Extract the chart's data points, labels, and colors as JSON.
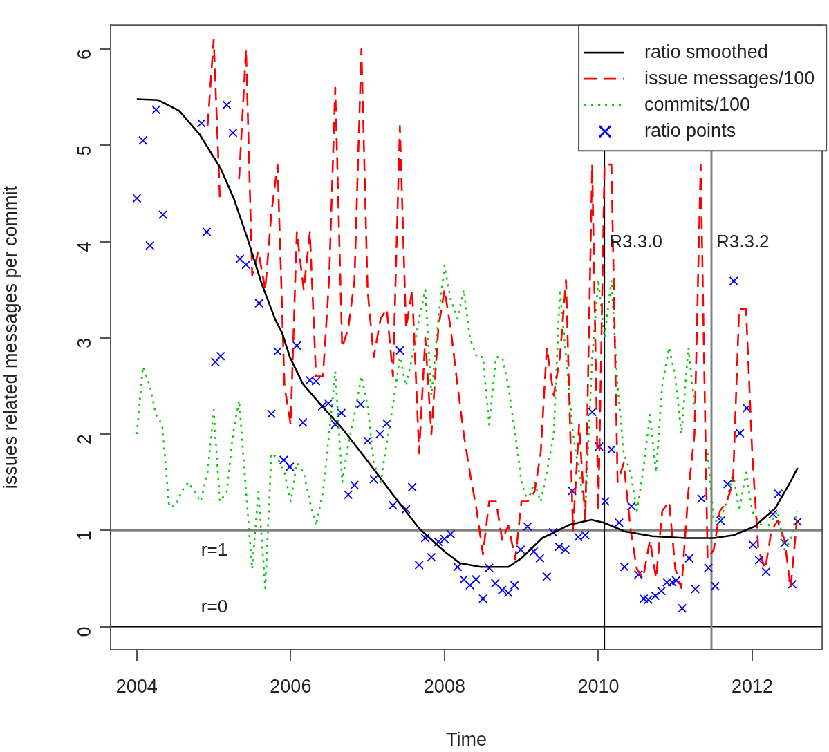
{
  "chart_data": {
    "type": "line",
    "xlabel": "Time",
    "ylabel": "issues related messages per commit",
    "xlim": [
      2003.66,
      2012.91
    ],
    "ylim": [
      -0.24,
      6.25
    ],
    "xticks": [
      2004,
      2006,
      2008,
      2010,
      2012
    ],
    "yticks": [
      0,
      1,
      2,
      3,
      4,
      5,
      6
    ],
    "grid": false,
    "legend": "top right",
    "ref_lines": [
      {
        "axis": "y",
        "value": 1,
        "label": "r=1",
        "color": "#808080"
      },
      {
        "axis": "y",
        "value": 0,
        "label": "r=0",
        "color": "#000000"
      },
      {
        "axis": "x",
        "value": 2010.08,
        "label": "R3.3.0",
        "color": "#000000"
      },
      {
        "axis": "x",
        "value": 2011.47,
        "label": "R3.3.2",
        "color": "#808080"
      }
    ],
    "series": [
      {
        "name": "ratio smoothed",
        "color": "#000000",
        "line_style": "solid",
        "marker": "none",
        "x": [
          2004.0,
          2004.28,
          2004.55,
          2004.82,
          2005.09,
          2005.26,
          2005.44,
          2005.62,
          2005.8,
          2005.89,
          2005.99,
          2006.16,
          2006.42,
          2006.67,
          2007.0,
          2007.33,
          2007.67,
          2008.0,
          2008.2,
          2008.47,
          2008.83,
          2009.0,
          2009.27,
          2009.63,
          2009.91,
          2010.07,
          2010.34,
          2010.7,
          2011.14,
          2011.5,
          2011.76,
          2012.03,
          2012.3,
          2012.48,
          2012.59
        ],
        "values": [
          5.48,
          5.47,
          5.36,
          5.11,
          4.76,
          4.45,
          4.03,
          3.57,
          3.19,
          3.05,
          2.8,
          2.52,
          2.28,
          2.06,
          1.72,
          1.37,
          1.02,
          0.78,
          0.66,
          0.62,
          0.62,
          0.71,
          0.92,
          1.06,
          1.11,
          1.08,
          0.99,
          0.94,
          0.92,
          0.92,
          0.95,
          1.04,
          1.23,
          1.48,
          1.65
        ]
      },
      {
        "name": "issue messages/100",
        "color": "#ff0000",
        "line_style": "dashed",
        "marker": "none",
        "x": [
          2004.92,
          2005.0,
          2005.08,
          2005.17,
          2005.25,
          2005.33,
          2005.42,
          2005.5,
          2005.58,
          2005.67,
          2005.75,
          2005.83,
          2005.92,
          2006.0,
          2006.08,
          2006.17,
          2006.25,
          2006.33,
          2006.42,
          2006.5,
          2006.58,
          2006.67,
          2006.75,
          2006.83,
          2006.92,
          2007.0,
          2007.08,
          2007.17,
          2007.25,
          2007.33,
          2007.42,
          2007.5,
          2007.58,
          2007.67,
          2007.75,
          2007.83,
          2007.92,
          2008.0,
          2008.08,
          2008.17,
          2008.25,
          2008.33,
          2008.42,
          2008.5,
          2008.58,
          2008.67,
          2008.75,
          2008.83,
          2008.92,
          2009.0,
          2009.08,
          2009.17,
          2009.25,
          2009.33,
          2009.42,
          2009.5,
          2009.58,
          2009.67,
          2009.75,
          2009.83,
          2009.92,
          2010.0,
          2010.08,
          2010.17,
          2010.25,
          2010.33,
          2010.42,
          2010.5,
          2010.58,
          2010.67,
          2010.75,
          2010.83,
          2010.92,
          2011.0,
          2011.08,
          2011.17,
          2011.25,
          2011.33,
          2011.42,
          2011.5,
          2011.58,
          2011.67,
          2011.75,
          2011.83,
          2011.92,
          2012.0,
          2012.08,
          2012.17,
          2012.25,
          2012.33,
          2012.42,
          2012.5,
          2012.58
        ],
        "values": [
          5.2,
          6.1,
          4.45,
          null,
          null,
          4.65,
          6.0,
          3.65,
          3.9,
          3.5,
          4.3,
          4.8,
          2.5,
          2.1,
          4.1,
          3.5,
          4.1,
          2.6,
          2.6,
          3.6,
          5.6,
          2.9,
          3.1,
          3.6,
          6.0,
          3.5,
          2.8,
          3.2,
          3.3,
          2.6,
          5.2,
          3.1,
          3.5,
          1.8,
          3.0,
          2.0,
          3.1,
          3.5,
          3.1,
          2.5,
          2.0,
          1.6,
          1.2,
          0.75,
          1.3,
          1.3,
          0.9,
          1.05,
          0.7,
          1.3,
          1.3,
          1.4,
          1.8,
          2.9,
          2.4,
          2.8,
          3.6,
          1.0,
          2.1,
          1.1,
          4.8,
          1.2,
          4.8,
          4.8,
          1.5,
          1.7,
          1.0,
          0.6,
          0.5,
          0.9,
          0.5,
          1.2,
          1.3,
          0.6,
          0.4,
          1.4,
          2.0,
          4.8,
          0.7,
          0.8,
          1.2,
          1.3,
          1.5,
          3.3,
          3.3,
          1.8,
          0.8,
          0.6,
          1.0,
          1.1,
          0.9,
          0.4,
          1.1
        ]
      },
      {
        "name": "commits/100",
        "color": "#00cd00",
        "line_style": "dotted",
        "marker": "none",
        "x": [
          2004.0,
          2004.08,
          2004.17,
          2004.25,
          2004.33,
          2004.42,
          2004.5,
          2004.58,
          2004.67,
          2004.75,
          2004.83,
          2004.92,
          2005.0,
          2005.08,
          2005.17,
          2005.25,
          2005.33,
          2005.42,
          2005.5,
          2005.58,
          2005.67,
          2005.75,
          2005.83,
          2005.92,
          2006.0,
          2006.08,
          2006.17,
          2006.25,
          2006.33,
          2006.42,
          2006.5,
          2006.58,
          2006.67,
          2006.75,
          2006.83,
          2006.92,
          2007.0,
          2007.08,
          2007.17,
          2007.25,
          2007.33,
          2007.42,
          2007.5,
          2007.58,
          2007.67,
          2007.75,
          2007.83,
          2007.92,
          2008.0,
          2008.08,
          2008.17,
          2008.25,
          2008.33,
          2008.42,
          2008.5,
          2008.58,
          2008.67,
          2008.75,
          2008.83,
          2008.92,
          2009.0,
          2009.08,
          2009.17,
          2009.25,
          2009.33,
          2009.42,
          2009.5,
          2009.58,
          2009.67,
          2009.75,
          2009.83,
          2009.92,
          2010.0,
          2010.08,
          2010.17,
          2010.25,
          2010.33,
          2010.42,
          2010.5,
          2010.58,
          2010.67,
          2010.75,
          2010.83,
          2010.92,
          2011.0,
          2011.08,
          2011.17,
          2011.25,
          2011.33,
          2011.42,
          2011.5,
          2011.58,
          2011.67,
          2011.75,
          2011.83,
          2011.92,
          2012.0,
          2012.08,
          2012.17,
          2012.25,
          2012.33,
          2012.42,
          2012.5,
          2012.58
        ],
        "values": [
          2.0,
          2.7,
          2.5,
          2.2,
          2.1,
          1.25,
          1.25,
          1.4,
          1.5,
          1.4,
          1.3,
          1.6,
          2.25,
          1.3,
          1.4,
          2.0,
          2.35,
          1.4,
          0.6,
          1.4,
          0.4,
          1.8,
          1.75,
          1.6,
          1.3,
          1.7,
          1.6,
          1.3,
          1.05,
          1.4,
          2.0,
          2.65,
          1.5,
          1.9,
          2.2,
          2.6,
          2.3,
          1.7,
          1.5,
          1.9,
          2.3,
          2.8,
          2.5,
          2.8,
          3.2,
          3.5,
          2.4,
          3.2,
          3.75,
          3.4,
          3.2,
          3.5,
          3.0,
          2.8,
          2.8,
          2.1,
          2.8,
          2.8,
          2.5,
          2.0,
          1.5,
          1.3,
          1.5,
          1.3,
          1.6,
          2.0,
          3.5,
          2.8,
          2.0,
          1.6,
          1.2,
          2.8,
          3.6,
          3.0,
          3.6,
          2.5,
          1.8,
          1.6,
          1.2,
          1.6,
          2.2,
          1.6,
          2.5,
          2.9,
          2.6,
          2.0,
          2.9,
          2.3,
          null,
          1.8,
          1.1,
          1.1,
          1.3,
          1.6,
          1.2,
          1.6,
          1.2,
          1.1,
          1.0,
          1.1,
          1.2,
          0.8,
          0.9,
          1.2
        ]
      },
      {
        "name": "ratio points",
        "type": "scatter",
        "color": "#0000ff",
        "marker": "cross",
        "x": [
          2004.0,
          2004.08,
          2004.17,
          2004.25,
          2004.34,
          2004.84,
          2004.91,
          2005.02,
          2005.09,
          2005.17,
          2005.25,
          2005.34,
          2005.42,
          2005.59,
          2005.75,
          2005.83,
          2005.91,
          2005.99,
          2006.08,
          2006.16,
          2006.25,
          2006.33,
          2006.41,
          2006.49,
          2006.58,
          2006.66,
          2006.75,
          2006.83,
          2006.91,
          2007.0,
          2007.08,
          2007.16,
          2007.25,
          2007.33,
          2007.42,
          2007.5,
          2007.58,
          2007.67,
          2007.75,
          2007.83,
          2007.92,
          2008.0,
          2008.08,
          2008.17,
          2008.25,
          2008.33,
          2008.41,
          2008.5,
          2008.58,
          2008.66,
          2008.75,
          2008.83,
          2008.91,
          2008.99,
          2009.08,
          2009.16,
          2009.24,
          2009.33,
          2009.41,
          2009.49,
          2009.57,
          2009.66,
          2009.74,
          2009.83,
          2009.92,
          2010.01,
          2010.09,
          2010.17,
          2010.27,
          2010.34,
          2010.43,
          2010.52,
          2010.59,
          2010.65,
          2010.74,
          2010.82,
          2010.89,
          2010.96,
          2011.01,
          2011.09,
          2011.18,
          2011.26,
          2011.34,
          2011.43,
          2011.52,
          2011.59,
          2011.68,
          2011.76,
          2011.84,
          2011.93,
          2012.01,
          2012.09,
          2012.18,
          2012.27,
          2012.34,
          2012.42,
          2012.52,
          2012.59
        ],
        "values": [
          4.45,
          5.05,
          3.96,
          5.37,
          4.28,
          5.23,
          4.1,
          2.75,
          2.81,
          5.42,
          5.13,
          3.82,
          3.76,
          3.36,
          2.21,
          2.86,
          1.73,
          1.66,
          2.92,
          2.12,
          2.56,
          2.55,
          2.29,
          2.32,
          2.1,
          2.22,
          1.37,
          1.47,
          2.31,
          1.93,
          1.53,
          2.0,
          2.11,
          1.26,
          2.87,
          1.22,
          1.45,
          0.64,
          0.92,
          0.72,
          0.88,
          0.91,
          0.96,
          0.62,
          0.49,
          0.43,
          0.49,
          0.29,
          0.61,
          0.45,
          0.38,
          0.35,
          0.43,
          0.8,
          1.04,
          0.78,
          0.71,
          0.52,
          0.98,
          0.83,
          0.8,
          1.41,
          0.93,
          0.95,
          2.23,
          1.87,
          1.3,
          1.84,
          1.08,
          0.62,
          1.25,
          0.54,
          0.29,
          0.28,
          0.32,
          0.37,
          0.46,
          0.46,
          0.48,
          0.19,
          0.71,
          0.39,
          1.33,
          0.61,
          0.42,
          1.1,
          1.48,
          3.59,
          2.01,
          2.27,
          0.85,
          0.69,
          0.57,
          1.17,
          1.38,
          0.87,
          0.44,
          1.09
        ]
      }
    ]
  }
}
